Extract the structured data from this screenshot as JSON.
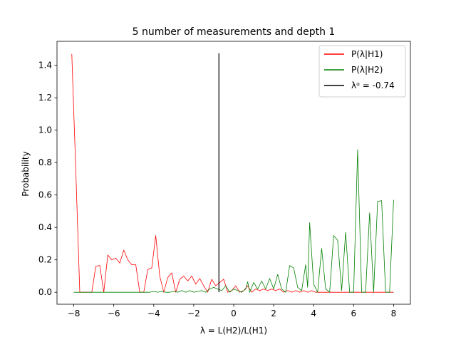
{
  "chart_data": {
    "type": "line",
    "title": "5 number of measurements and depth 1",
    "xlabel": "λ = L(H2)/L(H1)",
    "ylabel": "Probability",
    "xlim": [
      -8.84,
      8.84
    ],
    "ylim": [
      -0.074,
      1.548
    ],
    "xticks": [
      -8,
      -6,
      -4,
      -2,
      0,
      2,
      4,
      6,
      8
    ],
    "xtick_labels": [
      "−8",
      "−6",
      "−4",
      "−2",
      "0",
      "2",
      "4",
      "6",
      "8"
    ],
    "yticks": [
      0.0,
      0.2,
      0.4,
      0.6,
      0.8,
      1.0,
      1.2,
      1.4
    ],
    "ytick_labels": [
      "0.0",
      "0.2",
      "0.4",
      "0.6",
      "0.8",
      "1.0",
      "1.2",
      "1.4"
    ],
    "legend_position": "top-right",
    "series": [
      {
        "name": "P(λ|H1)",
        "color": "#ff0000",
        "x": [
          -8.1,
          -7.9,
          -7.7,
          -7.5,
          -7.3,
          -7.1,
          -6.9,
          -6.7,
          -6.5,
          -6.3,
          -6.1,
          -5.9,
          -5.7,
          -5.5,
          -5.3,
          -5.1,
          -4.9,
          -4.7,
          -4.5,
          -4.3,
          -4.1,
          -3.9,
          -3.7,
          -3.5,
          -3.3,
          -3.1,
          -2.9,
          -2.7,
          -2.5,
          -2.3,
          -2.1,
          -1.9,
          -1.7,
          -1.5,
          -1.3,
          -1.1,
          -0.9,
          -0.7,
          -0.5,
          -0.3,
          -0.1,
          0.1,
          0.3,
          0.5,
          0.7,
          0.9,
          1.1,
          1.3,
          1.5,
          1.7,
          1.9,
          2.1,
          2.3,
          2.5,
          2.7,
          2.9,
          3.1,
          3.3,
          3.5,
          3.7,
          3.9,
          4.1,
          4.3,
          4.5,
          4.7,
          4.9,
          5.1,
          5.3,
          5.5,
          5.7,
          5.9,
          6.1,
          6.3,
          6.5,
          6.7,
          6.9,
          7.1,
          7.3,
          7.5,
          7.7,
          7.9,
          8.0
        ],
        "y": [
          1.47,
          0.75,
          0.0,
          0.0,
          0.0,
          0.0,
          0.16,
          0.165,
          0.0,
          0.23,
          0.2,
          0.21,
          0.18,
          0.26,
          0.2,
          0.17,
          0.17,
          0.0,
          0.0,
          0.14,
          0.15,
          0.35,
          0.1,
          0.0,
          0.09,
          0.12,
          0.0,
          0.08,
          0.1,
          0.07,
          0.1,
          0.05,
          0.085,
          0.04,
          0.0,
          0.08,
          0.04,
          0.06,
          0.08,
          0.0,
          0.01,
          0.04,
          0.0,
          0.01,
          0.04,
          0.0,
          0.02,
          0.01,
          0.02,
          0.01,
          0.02,
          0.01,
          0.02,
          0.0,
          0.01,
          0.0,
          0.01,
          0.0,
          0.01,
          0.0,
          0.01,
          0.0,
          0.0,
          0.0,
          0.0,
          0.0,
          0.0,
          0.0,
          0.0,
          0.0,
          0.0,
          0.0,
          0.0,
          0.0,
          0.0,
          0.0,
          0.0,
          0.0,
          0.0,
          0.0,
          0.0,
          0.0
        ]
      },
      {
        "name": "P(λ|H2)",
        "color": "#008000",
        "x": [
          -8.0,
          -7.0,
          -6.0,
          -5.0,
          -4.4,
          -4.2,
          -4.0,
          -3.8,
          -3.6,
          -3.4,
          -3.2,
          -3.0,
          -2.8,
          -2.6,
          -2.4,
          -2.2,
          -2.0,
          -1.8,
          -1.6,
          -1.4,
          -1.2,
          -1.0,
          -0.8,
          -0.6,
          -0.4,
          -0.2,
          0.0,
          0.2,
          0.4,
          0.6,
          0.7,
          0.8,
          1.0,
          1.2,
          1.4,
          1.6,
          1.8,
          2.0,
          2.2,
          2.4,
          2.6,
          2.8,
          3.0,
          3.2,
          3.4,
          3.6,
          3.7,
          3.8,
          4.0,
          4.2,
          4.4,
          4.6,
          4.8,
          5.0,
          5.2,
          5.4,
          5.6,
          5.8,
          6.0,
          6.2,
          6.4,
          6.6,
          6.8,
          7.0,
          7.2,
          7.4,
          7.6,
          7.8,
          8.0
        ],
        "y": [
          0.0,
          0.0,
          0.0,
          0.0,
          0.0,
          0.0,
          0.005,
          0.0,
          0.005,
          0.0,
          0.0,
          0.005,
          0.0,
          0.01,
          0.0,
          0.01,
          0.0,
          0.005,
          0.01,
          0.0,
          0.02,
          0.03,
          0.02,
          0.01,
          0.04,
          0.0,
          0.02,
          0.01,
          0.0,
          0.02,
          0.065,
          0.0,
          0.06,
          0.02,
          0.07,
          0.02,
          0.085,
          0.02,
          0.11,
          0.02,
          0.0,
          0.165,
          0.15,
          0.03,
          0.01,
          0.17,
          0.03,
          0.43,
          0.05,
          0.0,
          0.27,
          0.02,
          0.0,
          0.35,
          0.32,
          0.01,
          0.37,
          0.0,
          0.0,
          0.88,
          0.0,
          0.0,
          0.49,
          0.0,
          0.56,
          0.565,
          0.0,
          0.0,
          0.57
        ]
      },
      {
        "name": "λᵅ = -0.74",
        "color": "#000000",
        "x": [
          -0.74,
          -0.74
        ],
        "y": [
          0.0,
          1.475
        ]
      }
    ]
  }
}
